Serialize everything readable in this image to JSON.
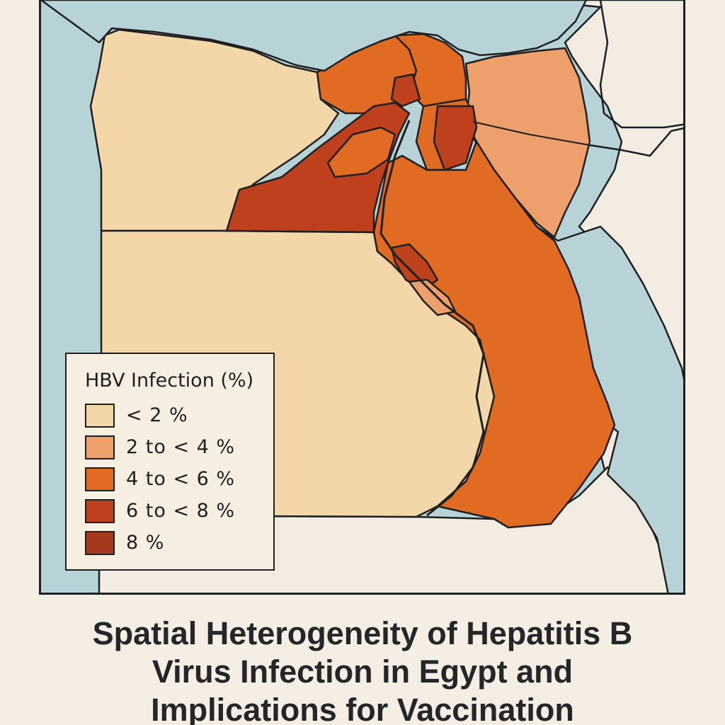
{
  "map": {
    "legend": {
      "title": "HBV Infection (%)",
      "items": [
        {
          "label": "< 2 %",
          "color": "#f4d7a9"
        },
        {
          "label": "2 to  < 4 %",
          "color": "#eda06b"
        },
        {
          "label": "4 to  < 6 %",
          "color": "#e26b24"
        },
        {
          "label": "6 to  < 8 %",
          "color": "#be401c"
        },
        {
          "label": "8 %",
          "color": "#a53a1e"
        }
      ]
    },
    "colors": {
      "sea": "#b7d3d7",
      "neighbor_land": "#f2ece3",
      "border": "#1f1f1f"
    }
  },
  "caption": {
    "title": "Spatial Heterogeneity of Hepatitis B Virus Infection in Egypt and Implications for Vaccination"
  }
}
